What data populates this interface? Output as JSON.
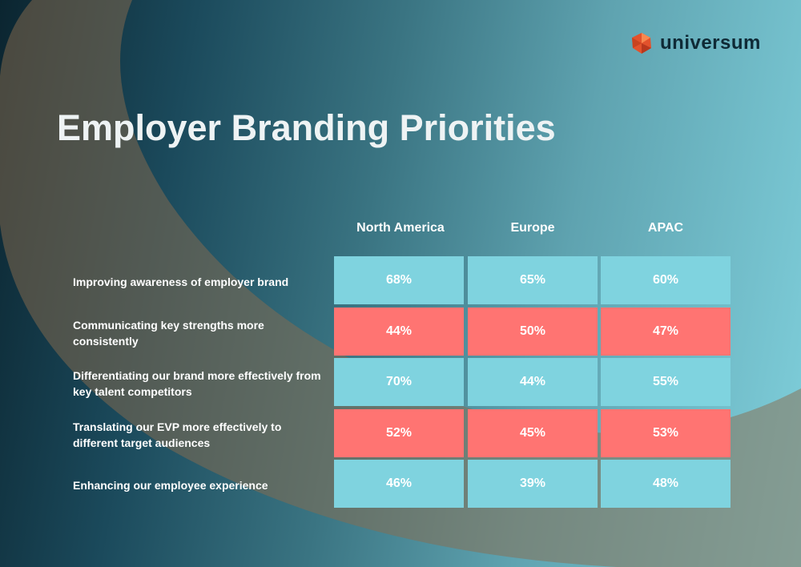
{
  "brand": {
    "logo_text": "universum",
    "colors": {
      "logo_mark": "#e2522c",
      "logo_text": "#0f2a36"
    }
  },
  "chart_data": {
    "type": "table",
    "title": "Employer Branding Priorities",
    "columns": [
      "North America",
      "Europe",
      "APAC"
    ],
    "rows": [
      {
        "label": "Improving awareness of employer brand",
        "values": [
          "68%",
          "65%",
          "60%"
        ],
        "highlight": "teal"
      },
      {
        "label": "Communicating key strengths more consistently",
        "values": [
          "44%",
          "50%",
          "47%"
        ],
        "highlight": "coral"
      },
      {
        "label": "Differentiating our brand more effectively from key talent competitors",
        "values": [
          "70%",
          "44%",
          "55%"
        ],
        "highlight": "teal"
      },
      {
        "label": "Translating our EVP more effectively to different target audiences",
        "values": [
          "52%",
          "45%",
          "53%"
        ],
        "highlight": "coral"
      },
      {
        "label": "Enhancing our employee experience",
        "values": [
          "46%",
          "39%",
          "48%"
        ],
        "highlight": "teal"
      }
    ],
    "colors": {
      "teal": "#7fd3df",
      "coral": "#ff7472",
      "title": "#eef3f4"
    }
  }
}
